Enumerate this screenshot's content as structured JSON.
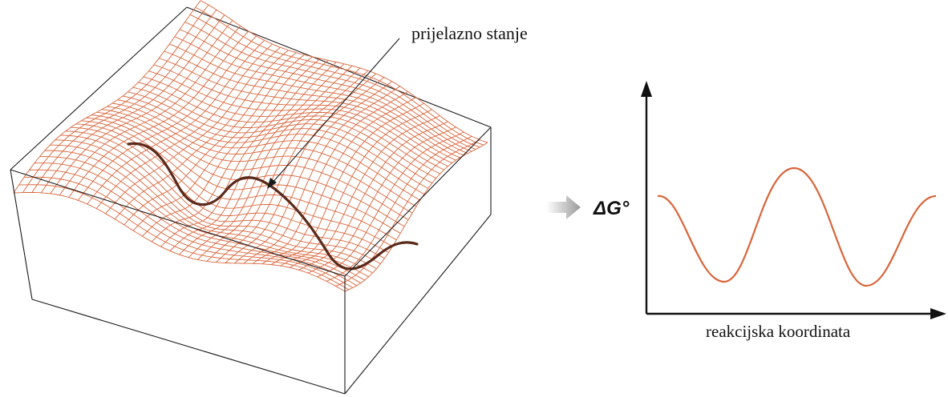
{
  "surface_panel": {
    "annotation_label": "prijelazno stanje",
    "mesh_color": "#d9653b",
    "path_color": "#5a2a1c",
    "box_color": "#1a1a1a"
  },
  "arrow": {
    "color": "#a9a9a9"
  },
  "profile_panel": {
    "y_axis_label": "ΔG°",
    "x_axis_label": "reakcijska koordinata",
    "curve_color": "#d9653b",
    "axis_color": "#111111"
  }
}
